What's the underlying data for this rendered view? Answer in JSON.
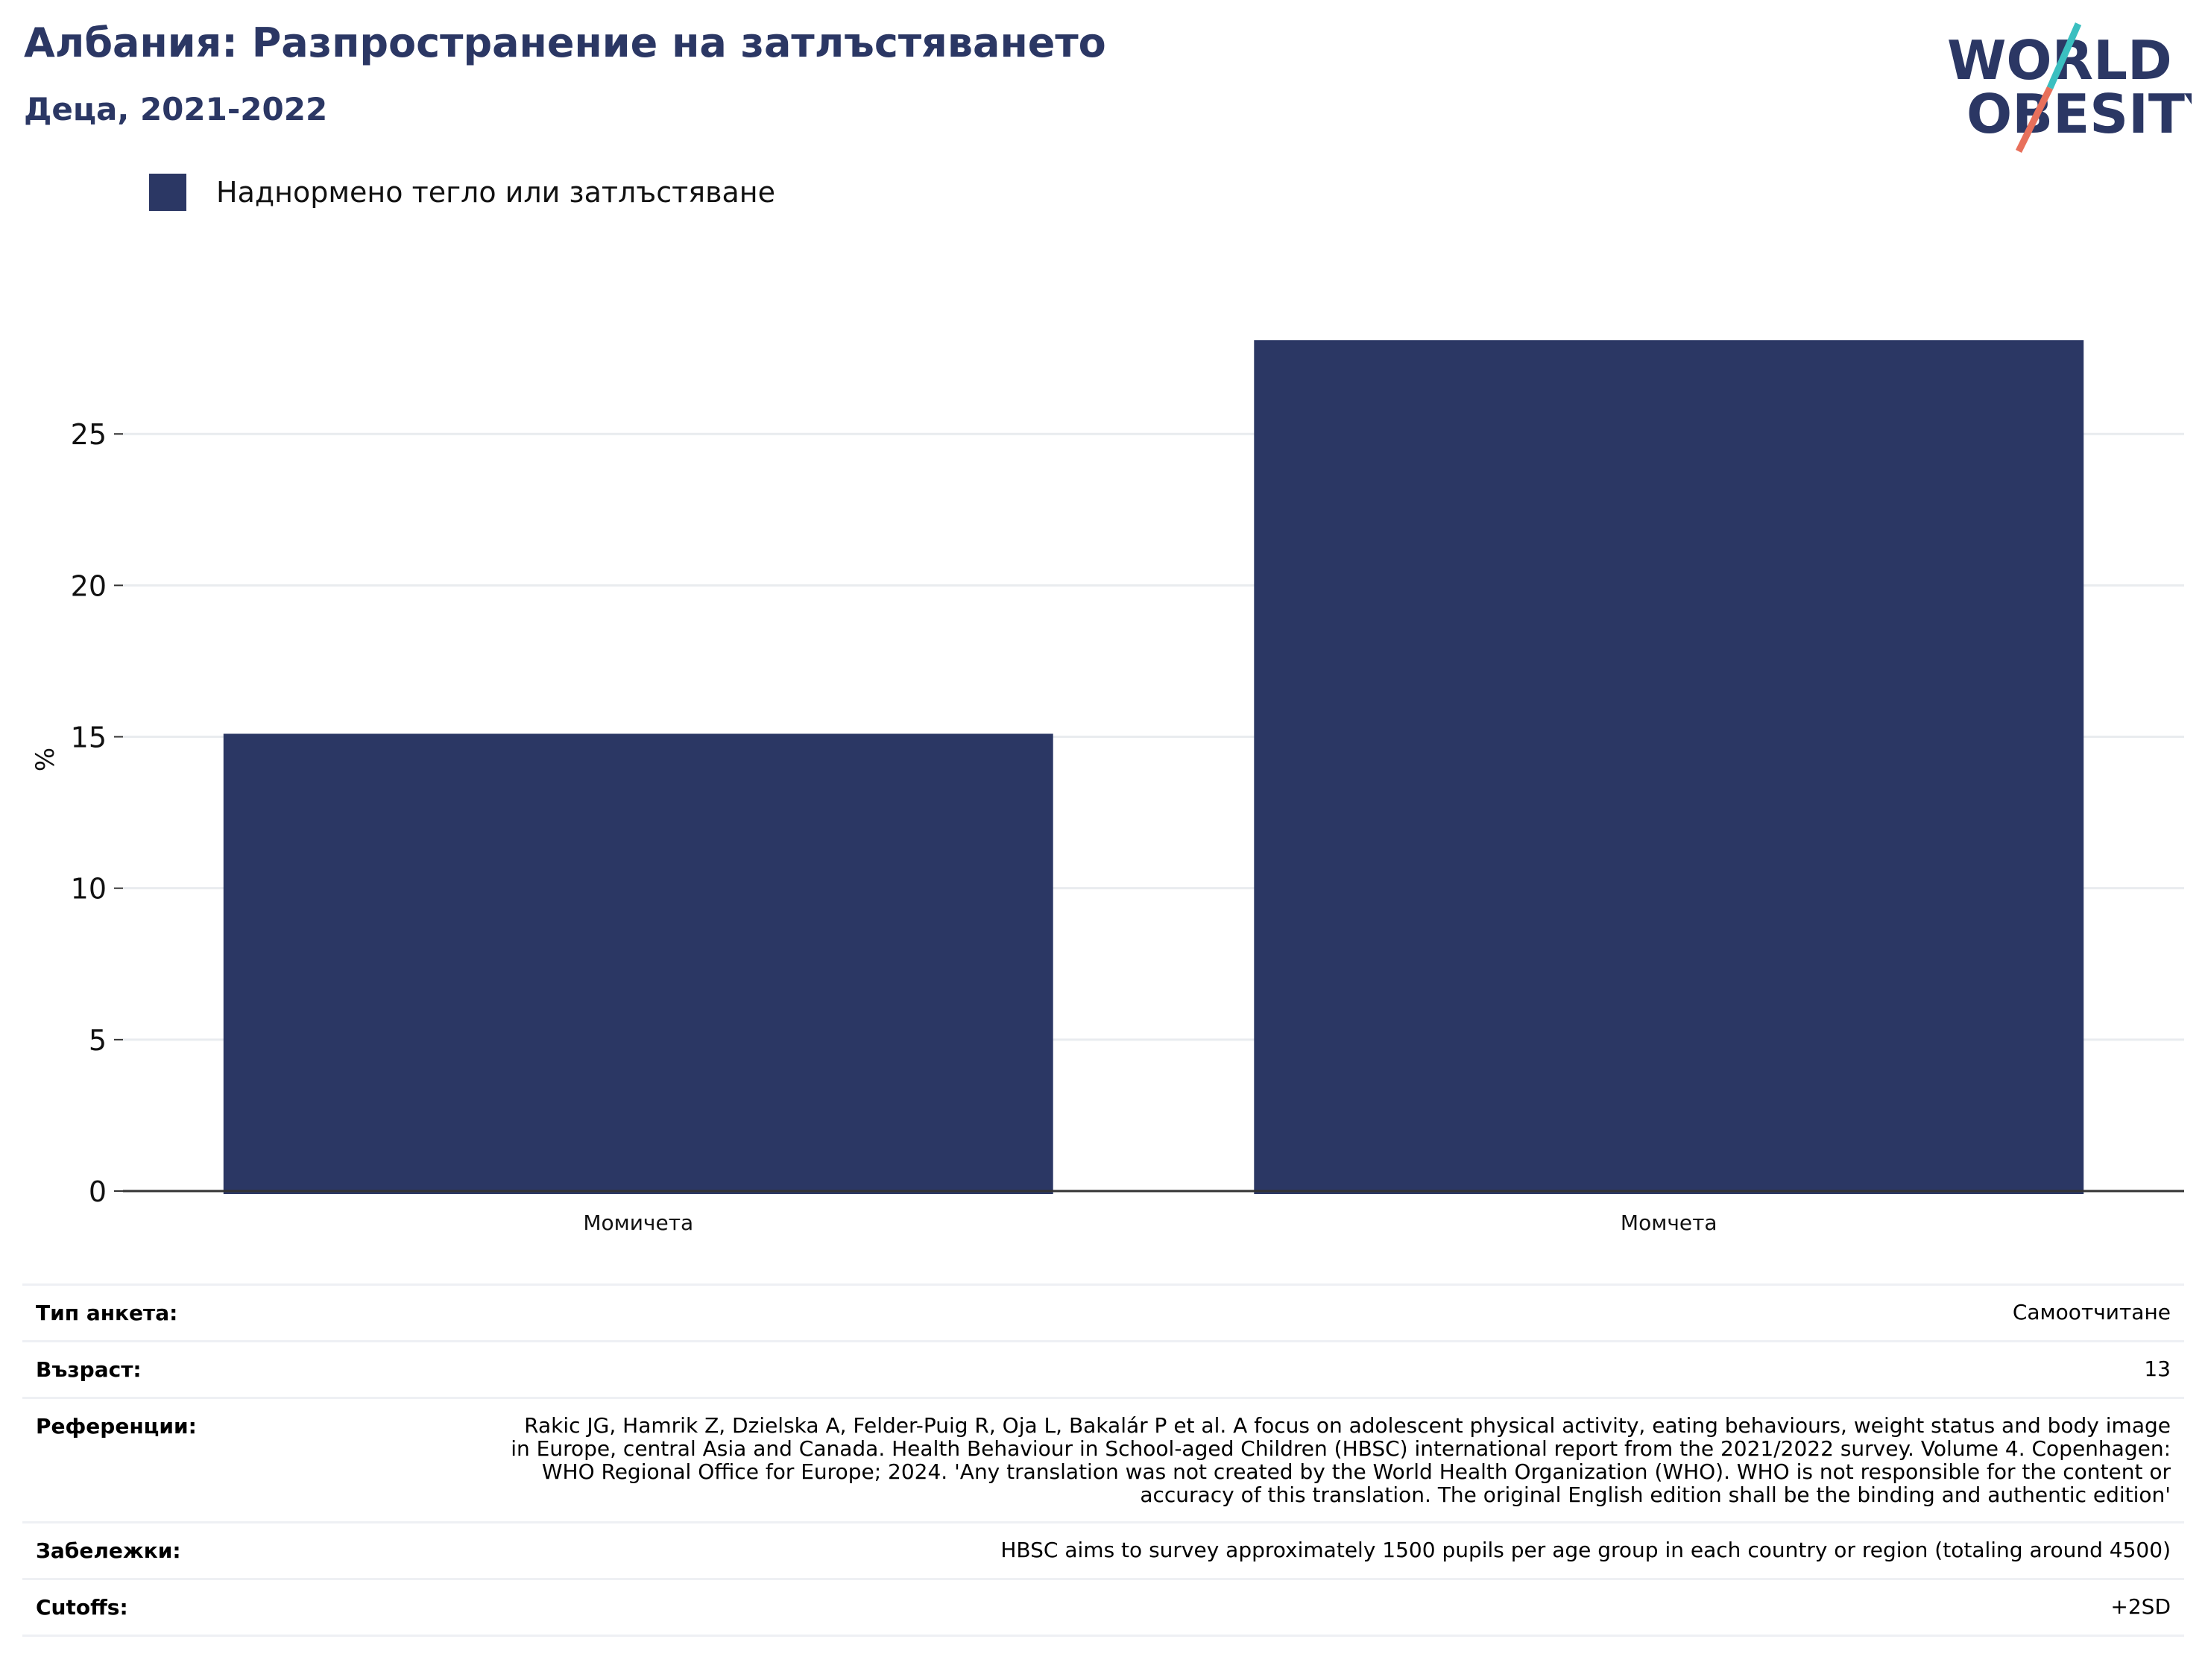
{
  "header": {
    "title": "Албания: Разпространение на затлъстяването",
    "subtitle": "Деца, 2021-2022"
  },
  "logo": {
    "line1": "WORLD",
    "line2": "OBESITY",
    "colors": {
      "text": "#2b3764",
      "slash_top": "#3bbfc0",
      "slash_bottom": "#e8705b"
    }
  },
  "colors": {
    "bar": "#2b3764",
    "grid": "#e9ecef",
    "axis": "#333333"
  },
  "chart_data": {
    "type": "bar",
    "categories": [
      "Момичета",
      "Момчета"
    ],
    "series": [
      {
        "name": "Наднормено тегло или затлъстяване",
        "values": [
          15.1,
          28.1
        ]
      }
    ],
    "ylabel": "%",
    "ylim": [
      0,
      28.5
    ],
    "yticks": [
      0,
      5,
      10,
      15,
      20,
      25
    ],
    "grid": true,
    "legend_position": "top-left"
  },
  "info": {
    "rows": [
      {
        "label": "Тип анкета:",
        "value": "Самоотчитане"
      },
      {
        "label": "Възраст:",
        "value": "13"
      },
      {
        "label": "Референции:",
        "value": "Rakic JG, Hamrik Z, Dzielska A, Felder-Puig R, Oja L, Bakalár P et al. A focus on adolescent physical activity, eating behaviours, weight status and body image in Europe, central Asia and Canada. Health Behaviour in School-aged Children (HBSC) international report from the 2021/2022 survey. Volume 4. Copenhagen: WHO Regional Office for Europe; 2024. 'Any translation was not created by the World Health Organization (WHO). WHO is not responsible for the content or accuracy of this translation. The original English edition shall be the binding and authentic edition'"
      },
      {
        "label": "Забележки:",
        "value": "HBSC aims to survey approximately 1500 pupils per age group in each country or region (totaling around 4500)"
      },
      {
        "label": "Cutoffs:",
        "value": "+2SD"
      }
    ]
  }
}
